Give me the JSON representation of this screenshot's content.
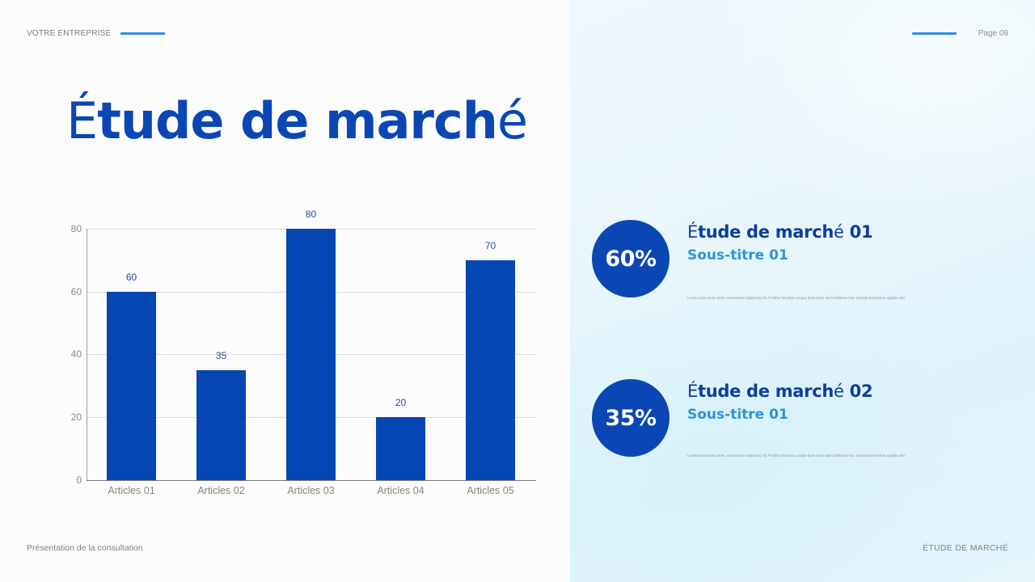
{
  "header": {
    "company": "VOTRE ENTREPRISE",
    "page": "Page 09"
  },
  "title": {
    "first_letter": "É",
    "middle": "tude de march",
    "last_letter": "é"
  },
  "colors": {
    "primary": "#0a47b5",
    "bar": "#0646b3",
    "accent": "#2f8ddb",
    "subtitle": "#2d93dc",
    "right_panel_bg": "#e8f6fc"
  },
  "chart_data": {
    "type": "bar",
    "title": "",
    "xlabel": "",
    "ylabel": "",
    "categories": [
      "Articles 01",
      "Articles 02",
      "Articles 03",
      "Articles 04",
      "Articles 05"
    ],
    "values": [
      60,
      35,
      80,
      20,
      70
    ],
    "data_labels": [
      "60",
      "35",
      "80",
      "20",
      "70"
    ],
    "yticks": [
      "0",
      "20",
      "40",
      "60",
      "80"
    ],
    "ylim": [
      0,
      80
    ],
    "grid": true,
    "legend": "none"
  },
  "stats": [
    {
      "percent": "60%",
      "title_first": "É",
      "title_middle": "tude de march",
      "title_accent": "é",
      "title_num": " 01",
      "subtitle": "Sous-titre 01",
      "body": "Lorem ipsum dolor amet, consectetur adipiscing elit. Porttitor faucibus congue diam tortor duis habitasse sed. Gravida fermentum sagittis odio"
    },
    {
      "percent": "35%",
      "title_first": "É",
      "title_middle": "tude de march",
      "title_accent": "é",
      "title_num": " 02",
      "subtitle": "Sous-titre 01",
      "body": "Lorem ipsum dolor amet, consectetur adipiscing elit. Porttitor faucibus congue diam tortor duis habitasse sed. Gravida fermentum sagittis odio"
    }
  ],
  "footer": {
    "left": "Présentation de la consultation",
    "right": "ÉTUDE DE MARCHÉ"
  }
}
